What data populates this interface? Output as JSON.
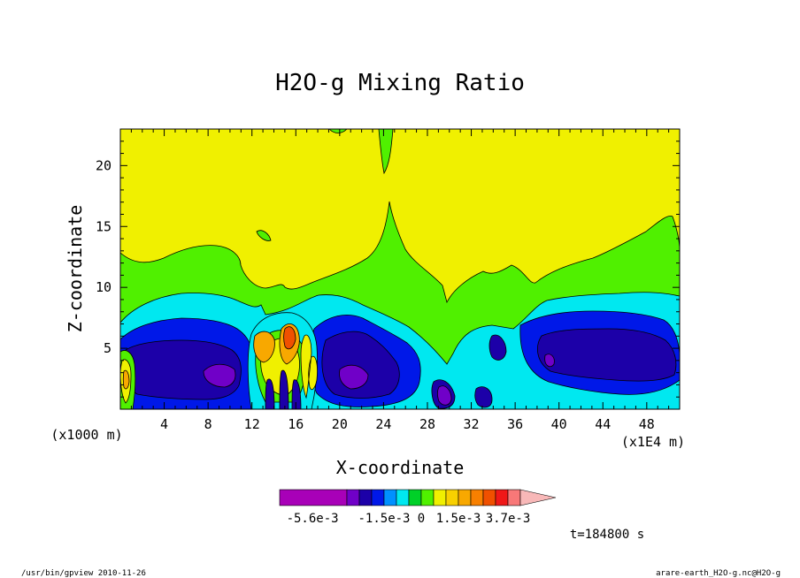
{
  "chart_data": {
    "type": "heatmap",
    "title": "H2O-g Mixing Ratio",
    "xlabel": "X-coordinate",
    "ylabel": "Z-coordinate",
    "x_scale_note": "(x1E4 m)",
    "y_scale_note": "(x1000 m)",
    "xticks": [
      "4",
      "8",
      "12",
      "16",
      "20",
      "24",
      "28",
      "32",
      "36",
      "40",
      "44",
      "48"
    ],
    "xtick_values": [
      4,
      8,
      12,
      16,
      20,
      24,
      28,
      32,
      36,
      40,
      44,
      48
    ],
    "yticks": [
      "5",
      "10",
      "15",
      "20"
    ],
    "ytick_values": [
      5,
      10,
      15,
      20
    ],
    "xlim": [
      0,
      51
    ],
    "ylim": [
      0,
      23
    ],
    "colorbar": {
      "labels": [
        "-5.6e-3",
        "-1.5e-3",
        "0",
        "1.5e-3",
        "3.7e-3"
      ],
      "label_values": [
        -0.0056,
        -0.0015,
        0,
        0.0015,
        0.0037
      ],
      "bins": [
        -0.0076,
        -0.0035,
        -0.0025,
        -0.002,
        -0.0015,
        -0.001,
        -0.0005,
        0,
        0.0005,
        0.001,
        0.0015,
        0.002,
        0.0026,
        0.0031,
        0.0037,
        0.0043
      ],
      "colors": [
        "#a800b8",
        "#7000c8",
        "#1c00a8",
        "#0018e8",
        "#0090ff",
        "#00e8f0",
        "#00d028",
        "#50f000",
        "#f0f000",
        "#f8d000",
        "#f8a800",
        "#f88000",
        "#f05000",
        "#f01818",
        "#f87878",
        "#f8b8b8"
      ]
    },
    "fields": {
      "background": "#f0f000",
      "green": "#50f000",
      "cyan": "#00e8f0",
      "blue": "#0018e8",
      "navy": "#1c00a8",
      "purple": "#7000c8",
      "magenta": "#a800b8",
      "orange": "#f8a800",
      "red": "#f05000"
    },
    "time_label": "t=184800 s"
  },
  "footer": {
    "left": "/usr/bin/gpview  2010-11-26",
    "right": "arare-earth_H2O-g.nc@H2O-g"
  }
}
